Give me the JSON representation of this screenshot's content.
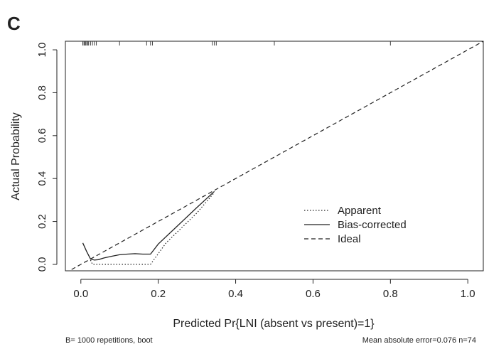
{
  "panel_label": "C",
  "footer": {
    "left": "B= 1000 repetitions, boot",
    "right": "Mean absolute error=0.076 n=74"
  },
  "chart_data": {
    "type": "line",
    "title": "",
    "xlabel": "Predicted Pr{LNI (absent vs present)=1}",
    "ylabel": "Actual Probability",
    "xlim": [
      -0.04,
      1.04
    ],
    "ylim": [
      -0.03,
      1.04
    ],
    "xticks": [
      0.0,
      0.2,
      0.4,
      0.6,
      0.8,
      1.0
    ],
    "xtick_labels": [
      "0.0",
      "0.2",
      "0.4",
      "0.6",
      "0.8",
      "1.0"
    ],
    "yticks": [
      0.0,
      0.2,
      0.4,
      0.6,
      0.8,
      1.0
    ],
    "ytick_labels": [
      "0.0",
      "0.2",
      "0.4",
      "0.6",
      "0.8",
      "1.0"
    ],
    "grid": false,
    "legend_position": "bottom-right",
    "series": [
      {
        "name": "Apparent",
        "style": "dotted",
        "x": [
          0.025,
          0.03,
          0.05,
          0.1,
          0.15,
          0.18,
          0.22,
          0.3,
          0.345
        ],
        "y": [
          0.02,
          0.0,
          0.0,
          0.0,
          0.0,
          0.0,
          0.1,
          0.24,
          0.335
        ]
      },
      {
        "name": "Bias-corrected",
        "style": "solid",
        "x": [
          0.005,
          0.015,
          0.025,
          0.035,
          0.045,
          0.06,
          0.08,
          0.1,
          0.12,
          0.14,
          0.16,
          0.18,
          0.2,
          0.25,
          0.3,
          0.345
        ],
        "y": [
          0.1,
          0.06,
          0.025,
          0.02,
          0.022,
          0.03,
          0.038,
          0.045,
          0.048,
          0.05,
          0.048,
          0.048,
          0.095,
          0.18,
          0.265,
          0.34
        ]
      },
      {
        "name": "Ideal",
        "style": "dashed",
        "x": [
          -0.04,
          1.04
        ],
        "y": [
          -0.04,
          1.04
        ]
      }
    ],
    "rug_x": [
      0.005,
      0.008,
      0.01,
      0.012,
      0.015,
      0.018,
      0.02,
      0.025,
      0.03,
      0.035,
      0.04,
      0.1,
      0.17,
      0.18,
      0.185,
      0.34,
      0.345,
      0.35,
      0.5,
      0.8
    ]
  }
}
